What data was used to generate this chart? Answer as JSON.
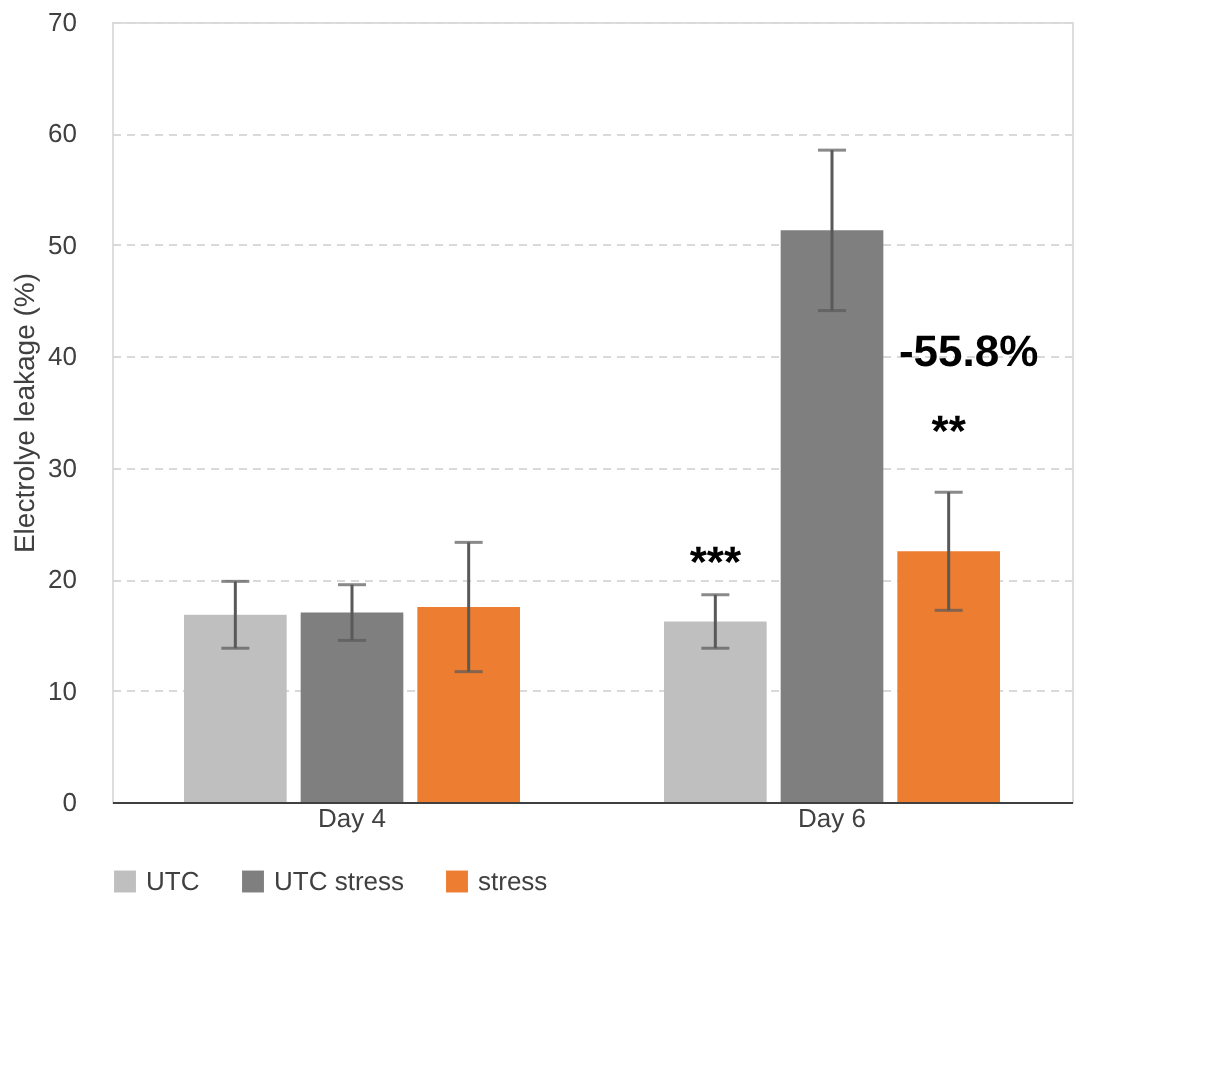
{
  "chart_data": {
    "type": "bar",
    "ylabel": "Electrolye leakage (%)",
    "categories": [
      "Day 4",
      "Day 6"
    ],
    "series": [
      {
        "name": "UTC",
        "color": "#bfbfbf",
        "values": [
          16.8,
          16.2
        ],
        "errors": [
          3.0,
          2.4
        ]
      },
      {
        "name": "UTC stress",
        "color": "#7f7f7f",
        "values": [
          17.0,
          51.3
        ],
        "errors": [
          2.5,
          7.2
        ]
      },
      {
        "name": "stress",
        "color": "#ed7d31",
        "values": [
          17.5,
          22.5
        ],
        "errors": [
          5.8,
          5.3
        ]
      }
    ],
    "ylim": [
      0,
      70
    ],
    "yticks": [
      0,
      10,
      20,
      30,
      40,
      50,
      60,
      70
    ],
    "grid": "y",
    "legend": "bottom",
    "annotations": [
      "***",
      "-55.8%",
      "**"
    ]
  }
}
